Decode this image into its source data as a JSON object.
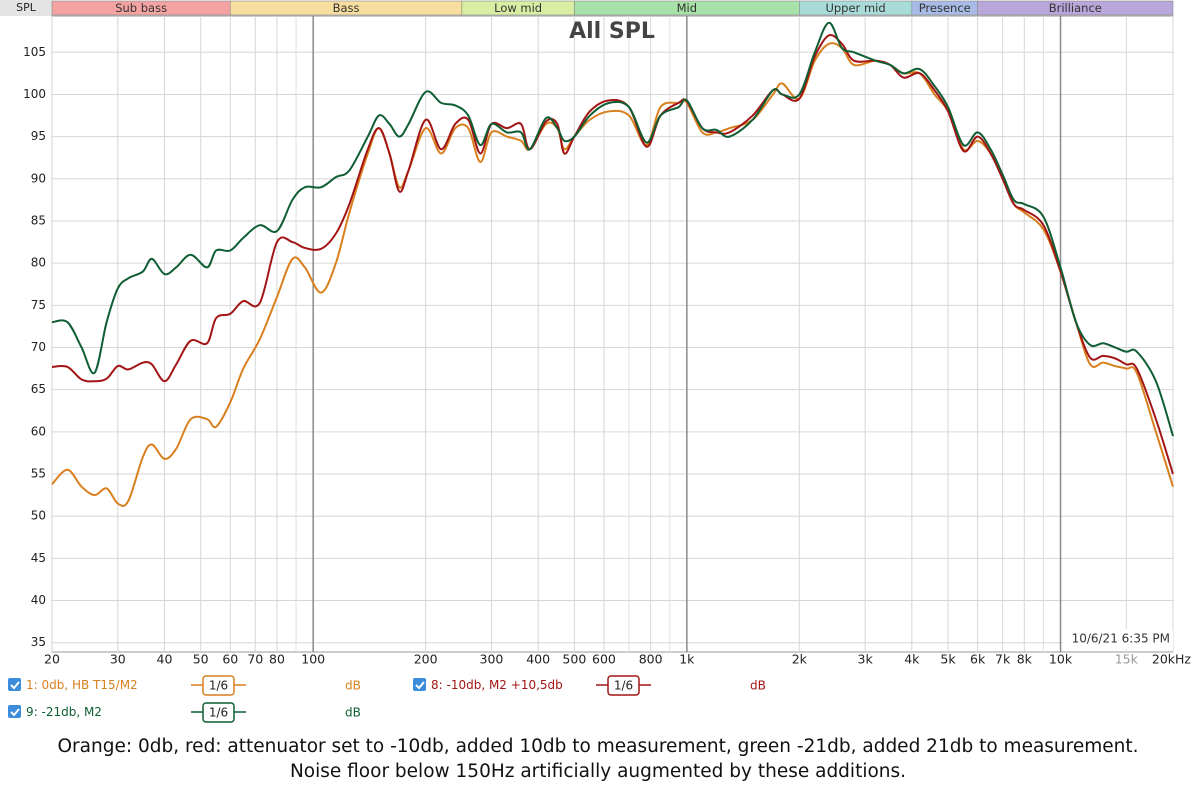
{
  "chart_data": {
    "type": "line",
    "title": "All SPL",
    "y_label": "SPL",
    "timestamp": "10/6/21 6:35 PM",
    "log_x": true,
    "grid": true,
    "xlim": [
      20,
      20000
    ],
    "ylim": [
      33.9,
      109.3
    ],
    "yticks": [
      35,
      40,
      45,
      50,
      55,
      60,
      65,
      70,
      75,
      80,
      85,
      90,
      95,
      100,
      105
    ],
    "xticks": [
      20,
      30,
      40,
      50,
      60,
      70,
      80,
      100,
      200,
      300,
      400,
      500,
      600,
      800,
      {
        "value": 1000,
        "label": "1k"
      },
      {
        "value": 2000,
        "label": "2k"
      },
      {
        "value": 3000,
        "label": "3k"
      },
      {
        "value": 4000,
        "label": "4k"
      },
      {
        "value": 5000,
        "label": "5k"
      },
      {
        "value": 6000,
        "label": "6k"
      },
      {
        "value": 7000,
        "label": "7k"
      },
      {
        "value": 8000,
        "label": "8k"
      },
      {
        "value": 10000,
        "label": "10k"
      },
      {
        "value": 15000,
        "label": "15k"
      },
      {
        "value": 20000,
        "label": "20kHz"
      }
    ],
    "xminor_ticks": [
      90,
      700,
      900,
      9000
    ],
    "bands": [
      {
        "name": "Sub bass",
        "range": [
          20,
          60
        ],
        "color": "#f4a3a3"
      },
      {
        "name": "Bass",
        "range": [
          60,
          250
        ],
        "color": "#f7dd9e"
      },
      {
        "name": "Low mid",
        "range": [
          250,
          500
        ],
        "color": "#d9eea3"
      },
      {
        "name": "Mid",
        "range": [
          500,
          2000
        ],
        "color": "#a8e2a8"
      },
      {
        "name": "Upper mid",
        "range": [
          2000,
          4000
        ],
        "color": "#a9dcd9"
      },
      {
        "name": "Presence",
        "range": [
          4000,
          6000
        ],
        "color": "#a8bbe6"
      },
      {
        "name": "Brilliance",
        "range": [
          6000,
          20000
        ],
        "color": "#b9a6da"
      }
    ],
    "x": [
      20,
      22,
      24,
      26,
      28,
      30,
      32,
      35,
      37,
      40,
      43,
      47,
      52,
      55,
      60,
      65,
      72,
      80,
      88,
      95,
      105,
      115,
      125,
      140,
      150,
      160,
      170,
      180,
      200,
      220,
      240,
      260,
      280,
      300,
      330,
      360,
      380,
      420,
      450,
      470,
      500,
      550,
      620,
      700,
      780,
      850,
      950,
      1000,
      1100,
      1200,
      1300,
      1500,
      1700,
      1800,
      2000,
      2200,
      2400,
      2600,
      2800,
      3200,
      3500,
      3800,
      4200,
      4600,
      5000,
      5500,
      6000,
      6500,
      7000,
      7500,
      8000,
      9000,
      10000,
      11000,
      12000,
      13000,
      14000,
      15000,
      16000,
      18000,
      20000
    ],
    "series": [
      {
        "name": "1: 0db, HB T15/M2",
        "smoothing": "1/6",
        "unit": "dB",
        "color": "#d97f1e",
        "values": [
          53.8,
          55.5,
          53.5,
          52.5,
          53.3,
          51.5,
          51.8,
          57,
          58.5,
          56.8,
          58,
          61.5,
          61.5,
          60.6,
          63.5,
          67.5,
          71,
          76,
          80.5,
          79.5,
          76.5,
          80,
          86,
          93,
          96,
          93,
          89,
          91,
          96,
          93,
          96,
          96,
          92,
          95.5,
          95,
          94.5,
          93.5,
          96.5,
          96,
          93.5,
          95,
          97,
          98,
          97.5,
          94,
          98.5,
          99,
          99,
          95.5,
          95.5,
          96,
          97,
          100,
          101.3,
          99.5,
          104,
          106,
          105.5,
          103.5,
          104,
          103.5,
          102.5,
          102.5,
          100,
          98,
          93.5,
          94.5,
          93,
          90,
          87,
          86,
          84,
          79,
          73,
          68,
          68.2,
          67.8,
          67.5,
          67,
          60,
          53.5
        ]
      },
      {
        "name": "8: -10db, M2 +10,5db",
        "smoothing": "1/6",
        "unit": "dB",
        "color": "#a31515",
        "values": [
          67.7,
          67.7,
          66.2,
          66,
          66.3,
          67.8,
          67.4,
          68.2,
          68,
          66,
          68,
          70.8,
          70.5,
          73.5,
          74,
          75.5,
          75.3,
          82.5,
          82.5,
          81.8,
          81.7,
          83.5,
          87,
          93.5,
          96,
          93,
          88.5,
          91,
          97,
          93.5,
          96.5,
          97,
          93,
          96.5,
          96,
          96.5,
          93.5,
          96.8,
          96.5,
          93,
          95,
          98,
          99.3,
          98.5,
          93.8,
          97.5,
          99,
          99.2,
          96,
          95.5,
          95.5,
          97.5,
          100.5,
          100,
          99.5,
          104.5,
          107,
          106,
          104,
          104,
          103.5,
          102,
          102.5,
          100.5,
          98,
          93.3,
          95,
          93,
          90,
          87,
          86.3,
          84.5,
          79,
          73,
          68.8,
          69,
          68.7,
          68,
          67.5,
          61.5,
          55
        ]
      },
      {
        "name": "9: -21db, M2",
        "smoothing": "1/6",
        "unit": "dB",
        "color": "#0f5e33",
        "values": [
          73,
          73,
          70,
          67,
          73,
          77,
          78.2,
          79,
          80.5,
          78.7,
          79.5,
          81,
          79.5,
          81.5,
          81.5,
          83,
          84.5,
          83.8,
          87.5,
          89,
          89,
          90.2,
          91,
          95,
          97.5,
          96.5,
          95,
          96.5,
          100.3,
          99,
          98.7,
          97.5,
          94,
          96.5,
          95.5,
          95.5,
          93.5,
          97.2,
          96,
          94.5,
          95,
          97.5,
          99,
          98.5,
          94.3,
          97.5,
          98.5,
          99.3,
          96,
          95.8,
          95,
          97,
          100.5,
          100,
          100,
          105,
          108.5,
          105.5,
          105,
          104,
          103.5,
          102.5,
          103,
          101,
          98.5,
          94,
          95.5,
          93.5,
          90.5,
          87.5,
          87,
          85.5,
          79.5,
          73,
          70.3,
          70.5,
          70,
          69.5,
          69.5,
          66,
          59.5
        ]
      }
    ],
    "caption": [
      "Orange: 0db, red: attenuator set to -10db, added 10db to measurement, green -21db, added 21db to measurement.",
      "Noise floor below 150Hz artificially augmented by these additions."
    ]
  }
}
